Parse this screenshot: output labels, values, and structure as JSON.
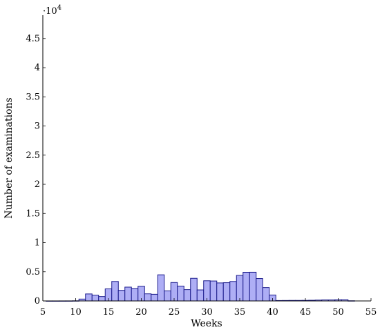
{
  "chart_data": {
    "type": "bar",
    "xlabel": "Weeks",
    "ylabel": "Number of examinations",
    "y_multiplier_label": "·10",
    "y_multiplier_exponent": "4",
    "xlim": [
      5,
      55
    ],
    "ylim": [
      0,
      49
    ],
    "x_ticks": [
      5,
      10,
      15,
      20,
      25,
      30,
      35,
      40,
      45,
      50,
      55
    ],
    "y_ticks": [
      0,
      0.5,
      1,
      1.5,
      2,
      2.5,
      3,
      3.5,
      4,
      4.5
    ],
    "y_tick_labels": [
      "0",
      "0.5",
      "1",
      "1.5",
      "2",
      "2.5",
      "3",
      "3.5",
      "4",
      "4.5"
    ],
    "grid": false,
    "bar_width_weeks": 1,
    "x": [
      6,
      7,
      8,
      9,
      10,
      11,
      12,
      13,
      14,
      15,
      16,
      17,
      18,
      19,
      20,
      21,
      22,
      23,
      24,
      25,
      26,
      27,
      28,
      29,
      30,
      31,
      32,
      33,
      34,
      35,
      36,
      37,
      38,
      39,
      40,
      41,
      42,
      43,
      44,
      45,
      46,
      47,
      48,
      49,
      50,
      51,
      52
    ],
    "values": [
      0.05,
      0.05,
      0.08,
      0.1,
      0.25,
      3.2,
      12.0,
      10.0,
      7.5,
      20.7,
      33.4,
      18.1,
      23.7,
      21.4,
      25.2,
      12.2,
      11.4,
      44.8,
      17.3,
      31.6,
      25.5,
      19.4,
      38.8,
      18.9,
      34.6,
      34.2,
      30.9,
      31.3,
      33.4,
      43.8,
      49.1,
      49.2,
      38.4,
      22.9,
      10.2,
      0.7,
      0.8,
      0.9,
      0.9,
      1.0,
      1.2,
      1.5,
      1.8,
      1.8,
      2.1,
      2.1,
      0.3
    ]
  }
}
